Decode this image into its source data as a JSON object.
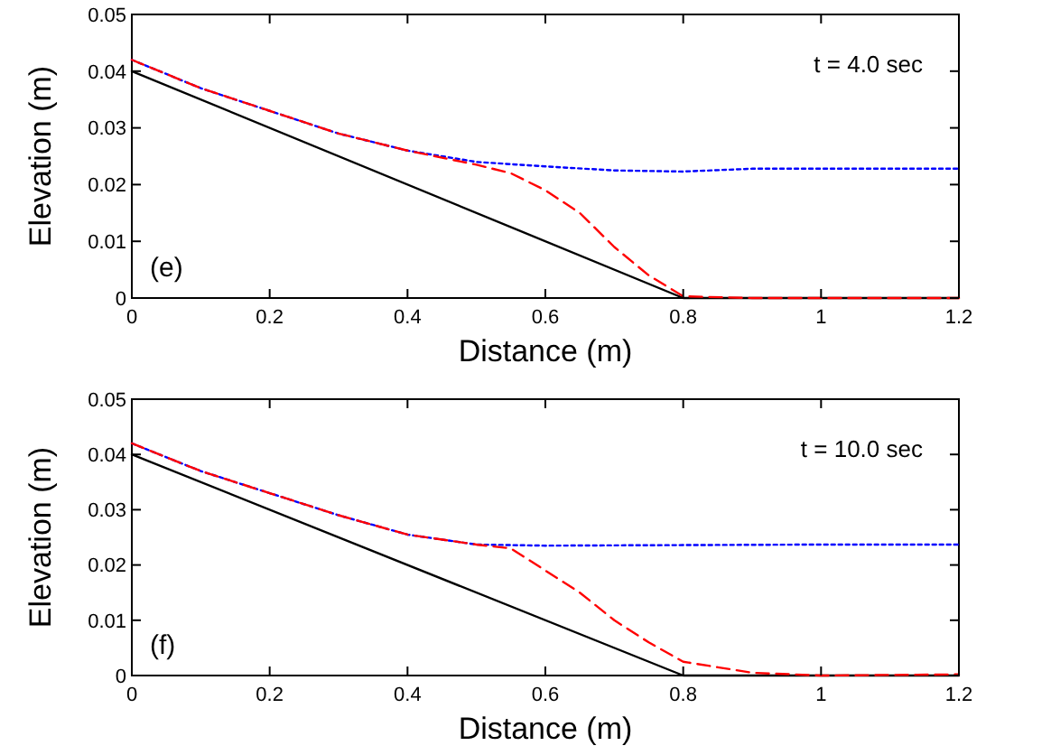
{
  "chart_data": [
    {
      "type": "line",
      "xlabel": "Distance (m)",
      "ylabel": "Elevation (m)",
      "annotations": [
        "t = 4.0 sec",
        "(e)"
      ],
      "xlim": [
        0,
        1.2
      ],
      "ylim": [
        0,
        0.05
      ],
      "xticks": [
        0,
        0.2,
        0.4,
        0.6,
        0.8,
        1,
        1.2
      ],
      "yticks": [
        0,
        0.01,
        0.02,
        0.03,
        0.04,
        0.05
      ],
      "grid": false,
      "series": [
        {
          "color": "#000000",
          "line_style": "solid",
          "x": [
            0,
            0.8,
            1.2
          ],
          "values": [
            0.04,
            0,
            0
          ]
        },
        {
          "color": "#0000ff",
          "line_style": "dotted",
          "x": [
            0,
            0.1,
            0.2,
            0.3,
            0.4,
            0.5,
            0.6,
            0.7,
            0.8,
            0.9,
            1.0,
            1.2
          ],
          "values": [
            0.042,
            0.037,
            0.033,
            0.029,
            0.026,
            0.024,
            0.0232,
            0.0225,
            0.0223,
            0.0228,
            0.0228,
            0.0228
          ]
        },
        {
          "color": "#ff0000",
          "line_style": "dashed",
          "x": [
            0,
            0.1,
            0.2,
            0.3,
            0.4,
            0.5,
            0.55,
            0.6,
            0.65,
            0.7,
            0.75,
            0.8,
            0.9,
            1.2
          ],
          "values": [
            0.042,
            0.037,
            0.033,
            0.029,
            0.026,
            0.0235,
            0.022,
            0.019,
            0.015,
            0.009,
            0.004,
            0.0003,
            0,
            0
          ]
        }
      ]
    },
    {
      "type": "line",
      "xlabel": "Distance (m)",
      "ylabel": "Elevation (m)",
      "annotations": [
        "t = 10.0 sec",
        "(f)"
      ],
      "xlim": [
        0,
        1.2
      ],
      "ylim": [
        0,
        0.05
      ],
      "xticks": [
        0,
        0.2,
        0.4,
        0.6,
        0.8,
        1,
        1.2
      ],
      "yticks": [
        0,
        0.01,
        0.02,
        0.03,
        0.04,
        0.05
      ],
      "grid": false,
      "series": [
        {
          "color": "#000000",
          "line_style": "solid",
          "x": [
            0,
            0.8,
            1.2
          ],
          "values": [
            0.04,
            0,
            0
          ]
        },
        {
          "color": "#0000ff",
          "line_style": "dotted",
          "x": [
            0,
            0.1,
            0.2,
            0.3,
            0.4,
            0.5,
            0.6,
            0.8,
            1.0,
            1.2
          ],
          "values": [
            0.042,
            0.037,
            0.033,
            0.029,
            0.0255,
            0.0237,
            0.0235,
            0.0236,
            0.0237,
            0.0237
          ]
        },
        {
          "color": "#ff0000",
          "line_style": "dashed",
          "x": [
            0,
            0.1,
            0.2,
            0.3,
            0.4,
            0.5,
            0.55,
            0.6,
            0.65,
            0.7,
            0.75,
            0.8,
            0.85,
            0.9,
            1.0,
            1.2
          ],
          "values": [
            0.042,
            0.037,
            0.033,
            0.029,
            0.0255,
            0.0237,
            0.023,
            0.019,
            0.015,
            0.01,
            0.006,
            0.0025,
            0.0015,
            0.0005,
            0,
            0.0002
          ]
        }
      ]
    }
  ]
}
